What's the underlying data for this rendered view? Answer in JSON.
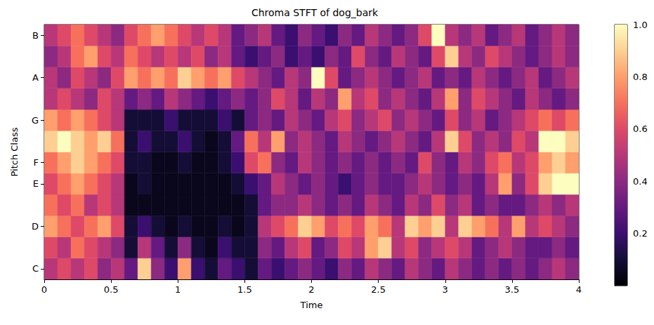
{
  "chart_data": {
    "type": "heatmap",
    "title": "Chroma STFT of dog_bark",
    "xlabel": "Time",
    "ylabel": "Pitch Class",
    "color": "magma",
    "categories": [
      "C",
      null,
      "D",
      null,
      "E",
      "F",
      null,
      "G",
      null,
      "A",
      null,
      "B"
    ],
    "x": [
      0,
      0.1,
      0.2,
      0.3,
      0.4,
      0.5,
      0.6,
      0.7,
      0.8,
      0.9,
      1,
      1.1,
      1.2,
      1.3,
      1.4,
      1.5,
      1.6,
      1.7,
      1.8,
      1.9,
      2,
      2.1,
      2.2,
      2.3,
      2.4,
      2.5,
      2.6,
      2.7,
      2.8,
      2.9,
      3,
      3.1,
      3.2,
      3.3,
      3.4,
      3.5,
      3.6,
      3.7,
      3.8,
      3.9
    ],
    "xlim": [
      0,
      4
    ],
    "xticks": [
      0,
      0.5,
      1,
      1.5,
      2,
      2.5,
      3,
      3.5,
      4
    ],
    "cells": [
      [
        0.5,
        0.6,
        0.5,
        0.6,
        0.4,
        0.5,
        0.3,
        0.9,
        0.4,
        0.2,
        0.8,
        0.2,
        0.1,
        0.3,
        0.2,
        0.1,
        0.3,
        0.2,
        0.3,
        0.4,
        0.3,
        0.2,
        0.4,
        0.3,
        0.5,
        0.4,
        0.3,
        0.5,
        0.4,
        0.3,
        0.5,
        0.4,
        0.3,
        0.4,
        0.3,
        0.4,
        0.3,
        0.4,
        0.5,
        0.4
      ],
      [
        0.6,
        0.5,
        0.7,
        0.6,
        0.5,
        0.4,
        0.1,
        0.5,
        0.3,
        0.1,
        0.4,
        0.1,
        0.05,
        0.2,
        0.1,
        0.1,
        0.4,
        0.3,
        0.5,
        0.6,
        0.3,
        0.4,
        0.6,
        0.5,
        0.8,
        0.9,
        0.5,
        0.6,
        0.4,
        0.5,
        0.6,
        0.5,
        0.3,
        0.4,
        0.5,
        0.4,
        0.3,
        0.3,
        0.4,
        0.3
      ],
      [
        0.8,
        0.7,
        0.6,
        0.7,
        0.8,
        0.6,
        0.1,
        0.2,
        0.1,
        0.05,
        0.1,
        0.05,
        0.05,
        0.1,
        0.05,
        0.1,
        0.5,
        0.6,
        0.7,
        0.9,
        0.8,
        0.6,
        0.7,
        0.6,
        0.8,
        0.7,
        0.5,
        0.9,
        0.8,
        0.9,
        0.5,
        0.9,
        0.8,
        0.7,
        0.5,
        0.8,
        0.5,
        0.6,
        0.5,
        0.4
      ],
      [
        0.7,
        0.6,
        0.7,
        0.5,
        0.6,
        0.5,
        0.05,
        0.05,
        0.05,
        0.05,
        0.05,
        0.05,
        0.05,
        0.05,
        0.05,
        0.1,
        0.3,
        0.4,
        0.4,
        0.5,
        0.4,
        0.3,
        0.4,
        0.3,
        0.5,
        0.4,
        0.3,
        0.5,
        0.4,
        0.6,
        0.4,
        0.5,
        0.3,
        0.4,
        0.3,
        0.3,
        0.4,
        0.5,
        0.4,
        0.5
      ],
      [
        0.6,
        0.7,
        0.8,
        0.7,
        0.6,
        0.5,
        0.05,
        0.1,
        0.05,
        0.05,
        0.05,
        0.05,
        0.05,
        0.05,
        0.1,
        0.2,
        0.3,
        0.5,
        0.4,
        0.3,
        0.4,
        0.3,
        0.2,
        0.3,
        0.4,
        0.3,
        0.3,
        0.4,
        0.5,
        0.4,
        0.3,
        0.4,
        0.3,
        0.5,
        0.8,
        0.4,
        0.6,
        0.9,
        1.0,
        1.0
      ],
      [
        0.7,
        0.8,
        0.9,
        0.8,
        0.7,
        0.6,
        0.1,
        0.1,
        0.05,
        0.05,
        0.1,
        0.05,
        0.05,
        0.1,
        0.2,
        0.6,
        0.7,
        0.4,
        0.3,
        0.5,
        0.4,
        0.3,
        0.4,
        0.3,
        0.4,
        0.3,
        0.4,
        0.3,
        0.6,
        0.4,
        0.3,
        0.5,
        0.4,
        0.6,
        0.7,
        0.5,
        0.6,
        0.8,
        0.9,
        0.8
      ],
      [
        0.9,
        1.0,
        0.9,
        0.8,
        0.9,
        0.7,
        0.1,
        0.2,
        0.1,
        0.1,
        0.2,
        0.1,
        0.05,
        0.1,
        0.3,
        0.7,
        0.5,
        0.8,
        0.4,
        0.5,
        0.4,
        0.3,
        0.5,
        0.4,
        0.3,
        0.4,
        0.5,
        0.4,
        0.3,
        0.5,
        0.9,
        0.6,
        0.4,
        0.5,
        0.4,
        0.6,
        0.5,
        1.0,
        1.0,
        0.9
      ],
      [
        0.8,
        0.7,
        0.8,
        0.7,
        0.6,
        0.5,
        0.1,
        0.1,
        0.1,
        0.2,
        0.1,
        0.1,
        0.1,
        0.2,
        0.1,
        0.3,
        0.4,
        0.3,
        0.5,
        0.4,
        0.3,
        0.5,
        0.6,
        0.4,
        0.5,
        0.6,
        0.4,
        0.5,
        0.4,
        0.3,
        0.6,
        0.4,
        0.5,
        0.3,
        0.4,
        0.5,
        0.6,
        0.7,
        0.6,
        0.7
      ],
      [
        0.5,
        0.6,
        0.5,
        0.4,
        0.6,
        0.5,
        0.3,
        0.4,
        0.3,
        0.5,
        0.4,
        0.3,
        0.2,
        0.3,
        0.4,
        0.3,
        0.4,
        0.6,
        0.5,
        0.3,
        0.5,
        0.4,
        0.8,
        0.5,
        0.6,
        0.4,
        0.5,
        0.4,
        0.3,
        0.5,
        0.8,
        0.4,
        0.6,
        0.5,
        0.4,
        0.3,
        0.5,
        0.4,
        0.3,
        0.4
      ],
      [
        0.5,
        0.4,
        0.6,
        0.5,
        0.4,
        0.6,
        0.8,
        0.7,
        0.8,
        0.7,
        0.9,
        0.8,
        0.7,
        0.8,
        0.6,
        0.5,
        0.4,
        0.3,
        0.5,
        0.4,
        1.0,
        0.6,
        0.3,
        0.4,
        0.5,
        0.4,
        0.3,
        0.4,
        0.5,
        0.3,
        0.4,
        0.3,
        0.5,
        0.4,
        0.3,
        0.4,
        0.5,
        0.3,
        0.4,
        0.5
      ],
      [
        0.4,
        0.5,
        0.7,
        0.8,
        0.6,
        0.5,
        0.7,
        0.6,
        0.5,
        0.6,
        0.5,
        0.6,
        0.4,
        0.5,
        0.3,
        0.2,
        0.3,
        0.4,
        0.2,
        0.3,
        0.2,
        0.4,
        0.3,
        0.6,
        0.4,
        0.3,
        0.5,
        0.4,
        0.3,
        0.6,
        0.9,
        0.5,
        0.4,
        0.6,
        0.5,
        0.4,
        0.3,
        0.4,
        0.5,
        0.4
      ],
      [
        0.5,
        0.6,
        0.7,
        0.6,
        0.5,
        0.4,
        0.6,
        0.7,
        0.8,
        0.7,
        0.6,
        0.5,
        0.6,
        0.5,
        0.3,
        0.4,
        0.5,
        0.3,
        0.2,
        0.4,
        0.3,
        0.2,
        0.4,
        0.3,
        0.5,
        0.4,
        0.3,
        0.4,
        0.6,
        1.0,
        0.5,
        0.4,
        0.5,
        0.3,
        0.4,
        0.5,
        0.3,
        0.4,
        0.5,
        0.4
      ]
    ],
    "colorbar": {
      "range": [
        0,
        1
      ],
      "ticks": [
        0.2,
        0.4,
        0.6,
        0.8,
        {
          "value": 1,
          "label": "1.0"
        }
      ]
    }
  }
}
